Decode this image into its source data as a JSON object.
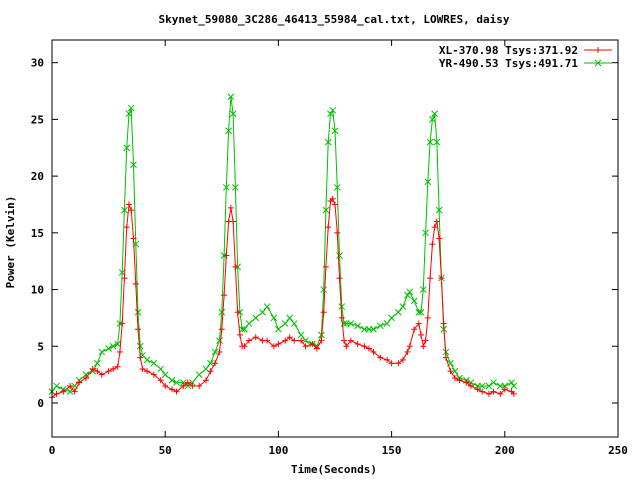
{
  "chart_data": {
    "type": "line",
    "title": "Skynet_59080_3C286_46413_55984_cal.txt, LOWRES, daisy",
    "xlabel": "Time(Seconds)",
    "ylabel": "Power (Kelvin)",
    "xlim": [
      0,
      250
    ],
    "ylim": [
      -3,
      32
    ],
    "xticks": [
      0,
      50,
      100,
      150,
      200,
      250
    ],
    "yticks": [
      0,
      5,
      10,
      15,
      20,
      25,
      30
    ],
    "grid": false,
    "legend_position": "top-right",
    "series": [
      {
        "name": "XL-370.98 Tsys:371.92",
        "color": "#ff0000",
        "marker": "plus",
        "x": [
          0,
          2,
          5,
          8,
          10,
          12,
          15,
          18,
          20,
          22,
          25,
          27,
          29,
          30,
          31,
          32,
          33,
          34,
          35,
          36,
          37,
          38,
          39,
          40,
          42,
          45,
          48,
          50,
          53,
          55,
          58,
          60,
          62,
          65,
          68,
          70,
          72,
          74,
          75,
          76,
          77,
          78,
          79,
          80,
          81,
          82,
          83,
          84,
          85,
          87,
          90,
          93,
          95,
          98,
          100,
          103,
          105,
          107,
          110,
          112,
          115,
          117,
          119,
          120,
          121,
          122,
          123,
          124,
          125,
          126,
          127,
          128,
          129,
          130,
          132,
          135,
          138,
          140,
          142,
          145,
          148,
          150,
          153,
          155,
          157,
          158,
          160,
          162,
          163,
          164,
          165,
          166,
          167,
          168,
          169,
          170,
          171,
          172,
          173,
          174,
          176,
          178,
          180,
          183,
          185,
          188,
          190,
          193,
          195,
          198,
          200,
          203,
          204
        ],
        "y": [
          0.5,
          0.8,
          1.0,
          1.5,
          1.0,
          1.8,
          2.2,
          3.0,
          2.8,
          2.5,
          2.8,
          3.0,
          3.2,
          4.5,
          7.0,
          11.0,
          15.5,
          17.5,
          17.0,
          14.5,
          10.5,
          6.5,
          4.0,
          3.0,
          2.8,
          2.5,
          2.0,
          1.5,
          1.2,
          1.0,
          1.5,
          1.8,
          1.5,
          1.5,
          2.0,
          2.8,
          3.5,
          4.5,
          6.5,
          9.5,
          13.0,
          16.0,
          17.2,
          16.0,
          12.0,
          8.0,
          6.0,
          5.0,
          5.0,
          5.5,
          5.8,
          5.5,
          5.5,
          5.0,
          5.2,
          5.5,
          5.8,
          5.5,
          5.5,
          5.0,
          5.2,
          4.8,
          5.5,
          8.0,
          12.0,
          15.5,
          17.8,
          18.0,
          17.5,
          15.0,
          11.0,
          7.5,
          5.5,
          5.0,
          5.5,
          5.2,
          5.0,
          4.8,
          4.5,
          4.0,
          3.8,
          3.5,
          3.5,
          3.8,
          4.5,
          5.0,
          6.5,
          7.0,
          6.0,
          5.0,
          5.5,
          7.5,
          11.0,
          14.0,
          15.5,
          16.0,
          14.5,
          11.0,
          7.0,
          4.0,
          2.8,
          2.2,
          2.0,
          1.8,
          1.5,
          1.2,
          1.0,
          0.8,
          1.0,
          0.8,
          1.2,
          1.0,
          0.8
        ]
      },
      {
        "name": "YR-490.53 Tsys:491.71",
        "color": "#00c000",
        "marker": "cross",
        "x": [
          0,
          2,
          5,
          8,
          10,
          12,
          15,
          18,
          20,
          22,
          25,
          27,
          29,
          30,
          31,
          32,
          33,
          34,
          35,
          36,
          37,
          38,
          39,
          40,
          42,
          45,
          48,
          50,
          53,
          55,
          58,
          60,
          62,
          65,
          68,
          70,
          72,
          74,
          75,
          76,
          77,
          78,
          79,
          80,
          81,
          82,
          83,
          84,
          85,
          87,
          90,
          93,
          95,
          98,
          100,
          103,
          105,
          107,
          110,
          112,
          115,
          117,
          119,
          120,
          121,
          122,
          123,
          124,
          125,
          126,
          127,
          128,
          129,
          130,
          132,
          135,
          138,
          140,
          142,
          145,
          148,
          150,
          153,
          155,
          157,
          158,
          160,
          162,
          163,
          164,
          165,
          166,
          167,
          168,
          169,
          170,
          171,
          172,
          173,
          174,
          176,
          178,
          180,
          183,
          185,
          188,
          190,
          193,
          195,
          198,
          200,
          203,
          204
        ],
        "y": [
          1.0,
          1.5,
          1.2,
          1.0,
          1.5,
          2.0,
          2.5,
          2.8,
          3.5,
          4.5,
          4.8,
          5.0,
          5.2,
          7.0,
          11.5,
          17.0,
          22.5,
          25.5,
          26.0,
          21.0,
          14.0,
          8.0,
          5.0,
          4.2,
          3.8,
          3.5,
          3.0,
          2.5,
          2.0,
          1.8,
          1.8,
          1.5,
          1.8,
          2.5,
          3.0,
          3.5,
          4.5,
          5.5,
          8.0,
          13.0,
          19.0,
          24.0,
          27.0,
          25.5,
          19.0,
          12.0,
          8.0,
          6.5,
          6.5,
          7.0,
          7.5,
          8.0,
          8.5,
          7.5,
          6.5,
          7.0,
          7.5,
          7.0,
          6.0,
          5.5,
          5.2,
          5.0,
          6.0,
          10.0,
          17.0,
          23.0,
          25.5,
          25.8,
          24.0,
          19.0,
          13.0,
          8.5,
          7.0,
          7.0,
          7.0,
          6.8,
          6.5,
          6.5,
          6.5,
          6.8,
          7.0,
          7.5,
          8.0,
          8.5,
          9.5,
          9.8,
          9.0,
          8.0,
          8.0,
          10.0,
          15.0,
          19.5,
          23.0,
          25.0,
          25.5,
          23.0,
          17.0,
          11.0,
          6.5,
          4.5,
          3.5,
          2.8,
          2.2,
          2.0,
          1.8,
          1.5,
          1.5,
          1.5,
          1.8,
          1.5,
          1.5,
          1.8,
          1.5
        ]
      }
    ]
  }
}
